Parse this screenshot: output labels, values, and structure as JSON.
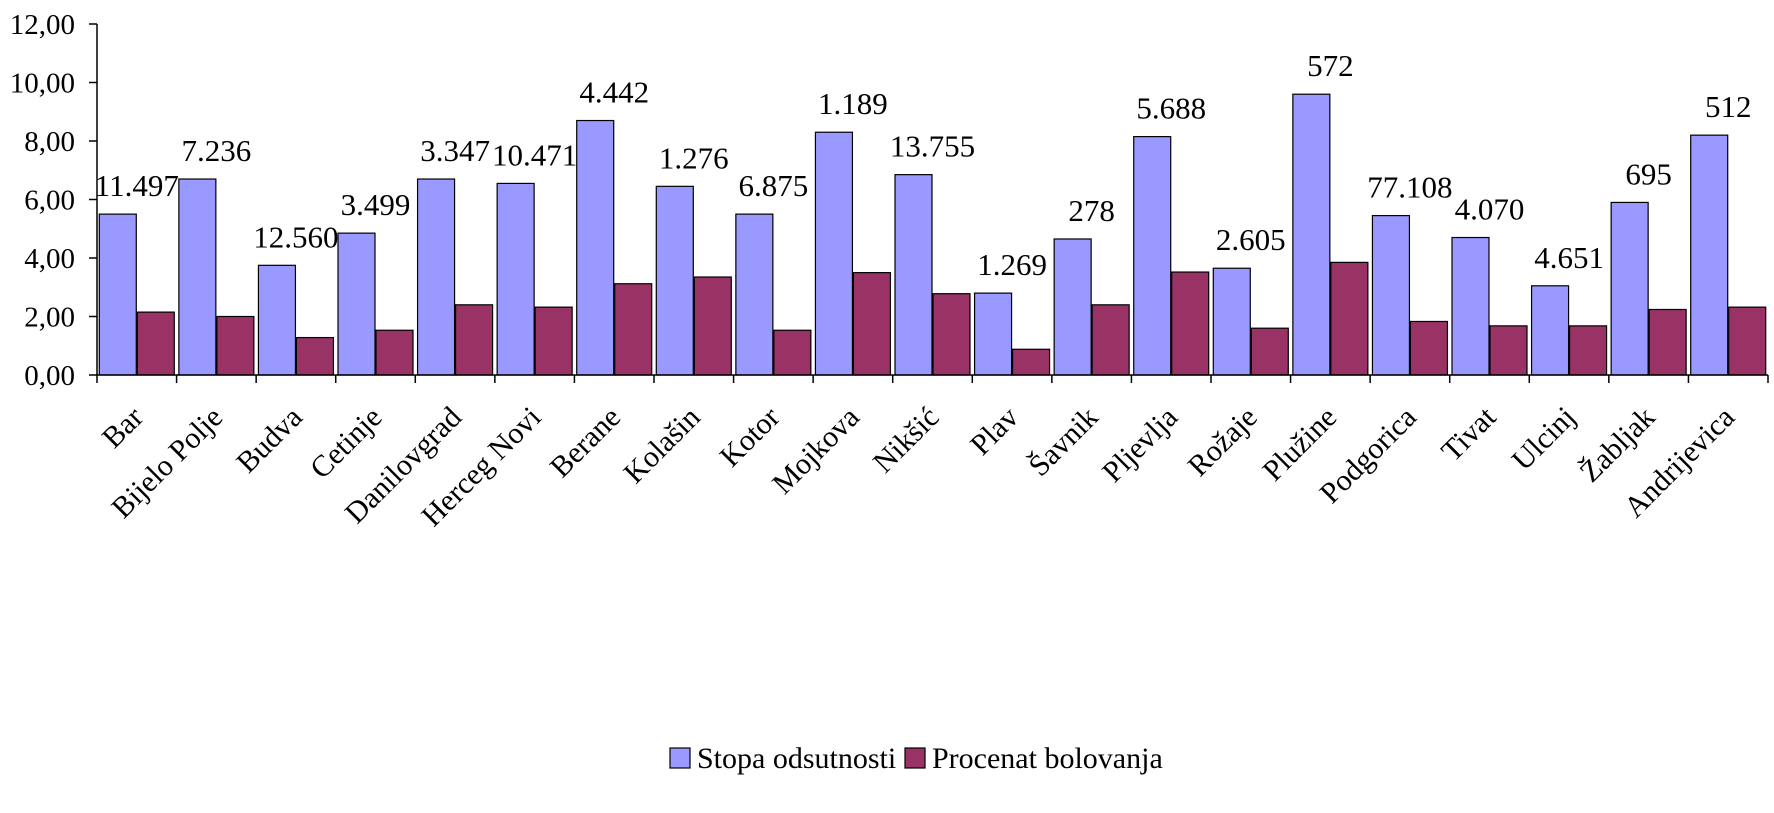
{
  "chart_data": {
    "type": "bar",
    "categories": [
      "Bar",
      "Bijelo Polje",
      "Budva",
      "Cetinje",
      "Danilovgrad",
      "Herceg Novi",
      "Berane",
      "Kolašin",
      "Kotor",
      "Mojkovac",
      "Nikšić",
      "Plav",
      "Šavnik",
      "Pljevlja",
      "Rožaje",
      "Plužine",
      "Podgorica",
      "Tivat",
      "Ulcinj",
      "Žabljak",
      "Andrijevica"
    ],
    "category_labels_shown": [
      "Bar",
      "Bijelo Polje",
      "Budva",
      "Cetinje",
      "Danilovgrad",
      "Herceg Novi",
      "Berane",
      "Kolašin",
      "Kotor",
      "Mojkova",
      "Nikšić",
      "Plav",
      "Šavnik",
      "Pljevlja",
      "Rožaje",
      "Plužine",
      "Podgorica",
      "Tivat",
      "Ulcinj",
      "Žabljak",
      "Andrijevica"
    ],
    "series": [
      {
        "name": "Stopa odsutnosti",
        "color": "#9999ff",
        "values": [
          5.5,
          6.7,
          3.75,
          4.85,
          6.7,
          6.55,
          8.7,
          6.45,
          5.5,
          8.3,
          6.85,
          2.8,
          4.65,
          8.15,
          3.65,
          9.6,
          5.45,
          4.7,
          3.05,
          5.9,
          8.2
        ]
      },
      {
        "name": "Procenat bolovanja",
        "color": "#993366",
        "values": [
          2.15,
          2.0,
          1.28,
          1.53,
          2.4,
          2.32,
          3.12,
          3.35,
          1.53,
          3.5,
          2.78,
          0.88,
          2.4,
          3.52,
          1.6,
          3.85,
          1.83,
          1.68,
          1.68,
          2.24,
          2.32
        ]
      }
    ],
    "data_labels": [
      "11.497",
      "7.236",
      "12.560",
      "3.499",
      "3.347",
      "10.471",
      "4.442",
      "1.276",
      "6.875",
      "1.189",
      "13.755",
      "1.269",
      "278",
      "5.688",
      "2.605",
      "572",
      "77.108",
      "4.070",
      "4.651",
      "695",
      "512"
    ],
    "y_ticks": [
      "0,00",
      "2,00",
      "4,00",
      "6,00",
      "8,00",
      "10,00",
      "12,00"
    ],
    "ylim": [
      0,
      12
    ],
    "title": "",
    "xlabel": "",
    "ylabel": "",
    "grid": false,
    "legend_position": "bottom"
  }
}
